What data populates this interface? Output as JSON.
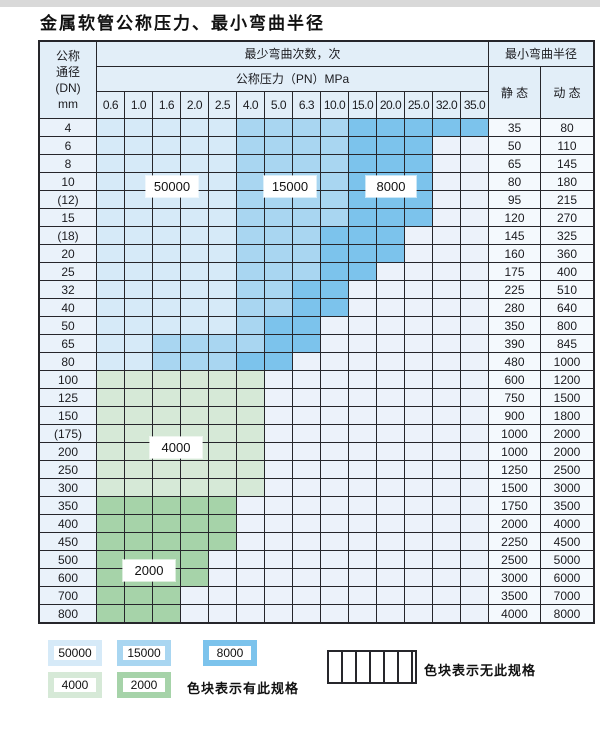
{
  "title": "金属软管公称压力、最小弯曲半径",
  "table": {
    "corner_lines": [
      "公称",
      "通径",
      "(DN)",
      "mm"
    ],
    "bend_cycles_header": "最少弯曲次数，次",
    "pressure_header": "公称压力（PN）MPa",
    "radius_header": "最小弯曲半径",
    "static_header": "静 态",
    "dynamic_header": "动 态",
    "pressure_columns": [
      "0.6",
      "1.0",
      "1.6",
      "2.0",
      "2.5",
      "4.0",
      "5.0",
      "6.3",
      "10.0",
      "15.0",
      "20.0",
      "25.0",
      "32.0",
      "35.0"
    ],
    "cell_legend_key": {
      "L": "50000",
      "M": "15000",
      "D": "8000",
      "P": "4000",
      "G": "2000",
      "S": "no-spec-striped"
    },
    "rows": [
      {
        "dn": "4",
        "cells": "LLLLLMMMMDDDDD",
        "static": "35",
        "dynamic": "80"
      },
      {
        "dn": "6",
        "cells": "LLLLLMMMMDDDSS",
        "static": "50",
        "dynamic": "110"
      },
      {
        "dn": "8",
        "cells": "LLLLLMMMMDDDSS",
        "static": "65",
        "dynamic": "145"
      },
      {
        "dn": "10",
        "cells": "LLLLLMMMMDDDSS",
        "static": "80",
        "dynamic": "180"
      },
      {
        "dn": "(12)",
        "cells": "LLLLLMMMMDDDSS",
        "static": "95",
        "dynamic": "215"
      },
      {
        "dn": "15",
        "cells": "LLLLLMMMMDDDSS",
        "static": "120",
        "dynamic": "270"
      },
      {
        "dn": "(18)",
        "cells": "LLLLLMMMDDDSSS",
        "static": "145",
        "dynamic": "325"
      },
      {
        "dn": "20",
        "cells": "LLLLLMMMDDDSSS",
        "static": "160",
        "dynamic": "360"
      },
      {
        "dn": "25",
        "cells": "LLLLLMMMDDSSSS",
        "static": "175",
        "dynamic": "400"
      },
      {
        "dn": "32",
        "cells": "LLLLLMMDDSSSSS",
        "static": "225",
        "dynamic": "510"
      },
      {
        "dn": "40",
        "cells": "LLLLLMMDDSSSSS",
        "static": "280",
        "dynamic": "640"
      },
      {
        "dn": "50",
        "cells": "LLLLLMDDSSSSSS",
        "static": "350",
        "dynamic": "800"
      },
      {
        "dn": "65",
        "cells": "LLMMMMDDSSSSSS",
        "static": "390",
        "dynamic": "845"
      },
      {
        "dn": "80",
        "cells": "LLMMMDDSSSSSSS",
        "static": "480",
        "dynamic": "1000"
      },
      {
        "dn": "100",
        "cells": "PPPPPPSSSSSSSS",
        "static": "600",
        "dynamic": "1200"
      },
      {
        "dn": "125",
        "cells": "PPPPPPSSSSSSSS",
        "static": "750",
        "dynamic": "1500"
      },
      {
        "dn": "150",
        "cells": "PPPPPPSSSSSSSS",
        "static": "900",
        "dynamic": "1800"
      },
      {
        "dn": "(175)",
        "cells": "PPPPPPSSSSSSSS",
        "static": "1000",
        "dynamic": "2000"
      },
      {
        "dn": "200",
        "cells": "PPPPPPSSSSSSSS",
        "static": "1000",
        "dynamic": "2000"
      },
      {
        "dn": "250",
        "cells": "PPPPPPSSSSSSSS",
        "static": "1250",
        "dynamic": "2500"
      },
      {
        "dn": "300",
        "cells": "PPPPPPSSSSSSSS",
        "static": "1500",
        "dynamic": "3000"
      },
      {
        "dn": "350",
        "cells": "GGGGGSSSSSSSSS",
        "static": "1750",
        "dynamic": "3500"
      },
      {
        "dn": "400",
        "cells": "GGGGGSSSSSSSSS",
        "static": "2000",
        "dynamic": "4000"
      },
      {
        "dn": "450",
        "cells": "GGGGGSSSSSSSSS",
        "static": "2250",
        "dynamic": "4500"
      },
      {
        "dn": "500",
        "cells": "GGGGSSSSSSSSSS",
        "static": "2500",
        "dynamic": "5000"
      },
      {
        "dn": "600",
        "cells": "GGGGSSSSSSSSSS",
        "static": "3000",
        "dynamic": "6000"
      },
      {
        "dn": "700",
        "cells": "GGGSSSSSSSSSSS",
        "static": "3500",
        "dynamic": "7000"
      },
      {
        "dn": "800",
        "cells": "GGGSSSSSSSSSSS",
        "static": "4000",
        "dynamic": "8000"
      }
    ]
  },
  "overlays": [
    {
      "text": "50000"
    },
    {
      "text": "15000"
    },
    {
      "text": "8000"
    },
    {
      "text": "4000"
    },
    {
      "text": "2000"
    }
  ],
  "legend": {
    "swatches": [
      {
        "label": "50000",
        "color_key": "c50000"
      },
      {
        "label": "15000",
        "color_key": "c15000"
      },
      {
        "label": "8000",
        "color_key": "c8000"
      },
      {
        "label": "4000",
        "color_key": "c4000"
      },
      {
        "label": "2000",
        "color_key": "c2000"
      }
    ],
    "has_spec_text": "色块表示有此规格",
    "no_spec_text": "色块表示无此规格"
  },
  "colors": {
    "c50000": "#d6eaf8",
    "c15000": "#a9d6f1",
    "c8000": "#7cc3ec",
    "c4000": "#d6e9d7",
    "c2000": "#a6d3a9",
    "striped_bg": "#ecf2fa",
    "header_bg": "#e2eef8",
    "label_bg": "#eaf2fa",
    "value_bg": "#f4f9fd",
    "grid_line": "#26262b"
  }
}
